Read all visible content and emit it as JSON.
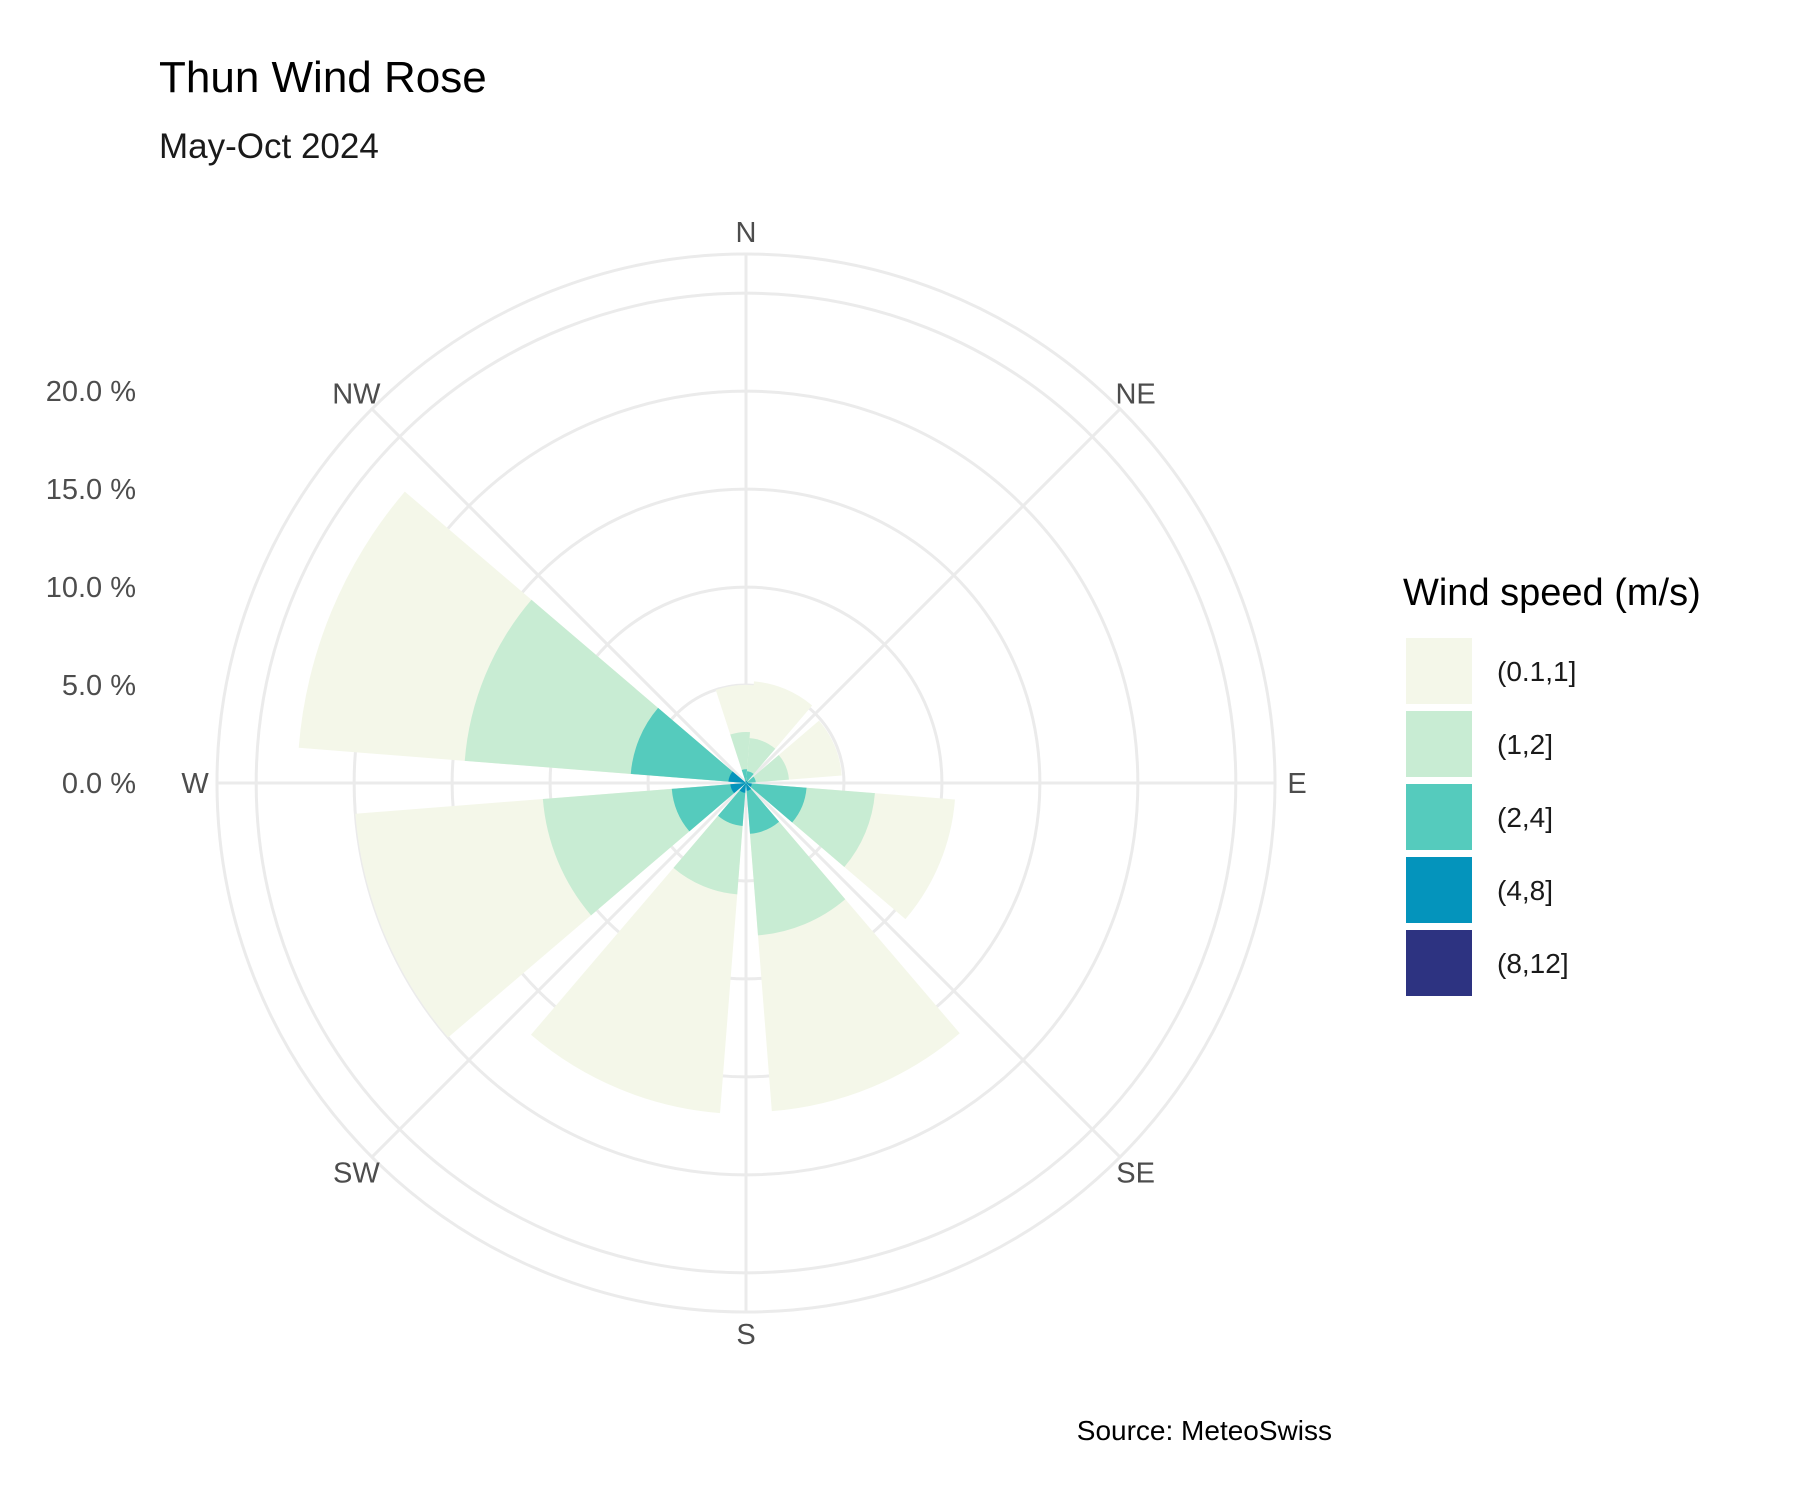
{
  "chart_data": {
    "type": "polar-bar",
    "title": "Thun Wind Rose",
    "subtitle": "May-Oct 2024",
    "caption": "Source: MeteoSwiss",
    "directions": [
      "N",
      "NE",
      "E",
      "SE",
      "S",
      "SW",
      "W",
      "NW"
    ],
    "radial_ticks": [
      "0.0 %",
      "5.0 %",
      "10.0 %",
      "15.0 %",
      "20.0 %"
    ],
    "radial_tick_values": [
      0,
      5,
      10,
      15,
      20
    ],
    "rlim": [
      0,
      27
    ],
    "legend": {
      "title": "Wind speed (m/s)",
      "placement": "right",
      "items": [
        {
          "label": "(0.1,1]",
          "color": "#f4f7e9"
        },
        {
          "label": "(1,2]",
          "color": "#c8ecd3"
        },
        {
          "label": "(2,4]",
          "color": "#55cbbd"
        },
        {
          "label": "(4,8]",
          "color": "#0494bc"
        },
        {
          "label": "(8,12]",
          "color": "#2d3381"
        }
      ]
    },
    "sectors": [
      {
        "direction": "N",
        "angle": 0,
        "cumulative": [
          5.0,
          2.6,
          0.7,
          0.1,
          0.0
        ]
      },
      {
        "direction": "NNE",
        "angle": 22.5,
        "cumulative": [
          5.2,
          2.3,
          0.6,
          0.1,
          0.0
        ]
      },
      {
        "direction": "ENE",
        "angle": 67.5,
        "cumulative": [
          4.9,
          2.2,
          0.5,
          0.1,
          0.0
        ]
      },
      {
        "direction": "ESE",
        "angle": 112.5,
        "cumulative": [
          10.7,
          6.6,
          3.1,
          0.3,
          0.0
        ]
      },
      {
        "direction": "SSE",
        "angle": 157.5,
        "cumulative": [
          16.8,
          7.8,
          2.6,
          0.4,
          0.0
        ]
      },
      {
        "direction": "SSW",
        "angle": 202.5,
        "cumulative": [
          16.9,
          5.7,
          2.2,
          0.5,
          0.0
        ]
      },
      {
        "direction": "WSW",
        "angle": 247.5,
        "cumulative": [
          20.0,
          10.4,
          3.8,
          0.8,
          0.0
        ]
      },
      {
        "direction": "WNW",
        "angle": 292.5,
        "cumulative": [
          22.9,
          14.4,
          5.9,
          0.9,
          0.0
        ]
      }
    ],
    "grid": true
  }
}
